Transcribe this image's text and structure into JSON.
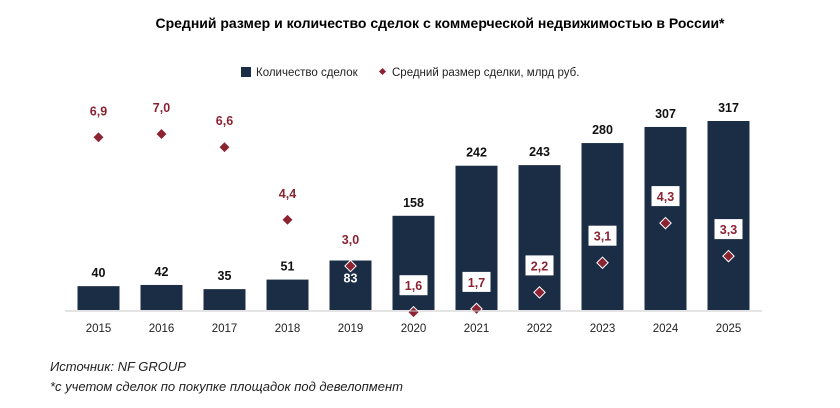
{
  "chart_data": {
    "type": "bar",
    "title": "Средний размер и количество сделок с коммерческой недвижимостью в России*",
    "categories": [
      "2015",
      "2016",
      "2017",
      "2018",
      "2019",
      "2020",
      "2021",
      "2022",
      "2023",
      "2024",
      "2025"
    ],
    "series": [
      {
        "name": "Количество сделок",
        "type": "bar",
        "color": "#1b2d45",
        "values": [
          40,
          42,
          35,
          51,
          83,
          158,
          242,
          243,
          280,
          307,
          317
        ]
      },
      {
        "name": "Средний размер сделки, млрд руб.",
        "type": "scatter",
        "marker": "diamond",
        "color": "#8b2332",
        "values": [
          6.9,
          7.0,
          6.6,
          4.4,
          3.0,
          1.6,
          1.7,
          2.2,
          3.1,
          4.3,
          3.3
        ],
        "labels": [
          "6,9",
          "7,0",
          "6,6",
          "4,4",
          "3,0",
          "1,6",
          "1,7",
          "2,2",
          "3,1",
          "4,3",
          "3,3"
        ]
      }
    ],
    "xlabel": "",
    "ylabel": "",
    "grid": false,
    "legend": "top-center"
  },
  "footnotes": {
    "source": "Источник: NF GROUP",
    "note": "*с учетом сделок по покупке площадок под девелопмент"
  }
}
